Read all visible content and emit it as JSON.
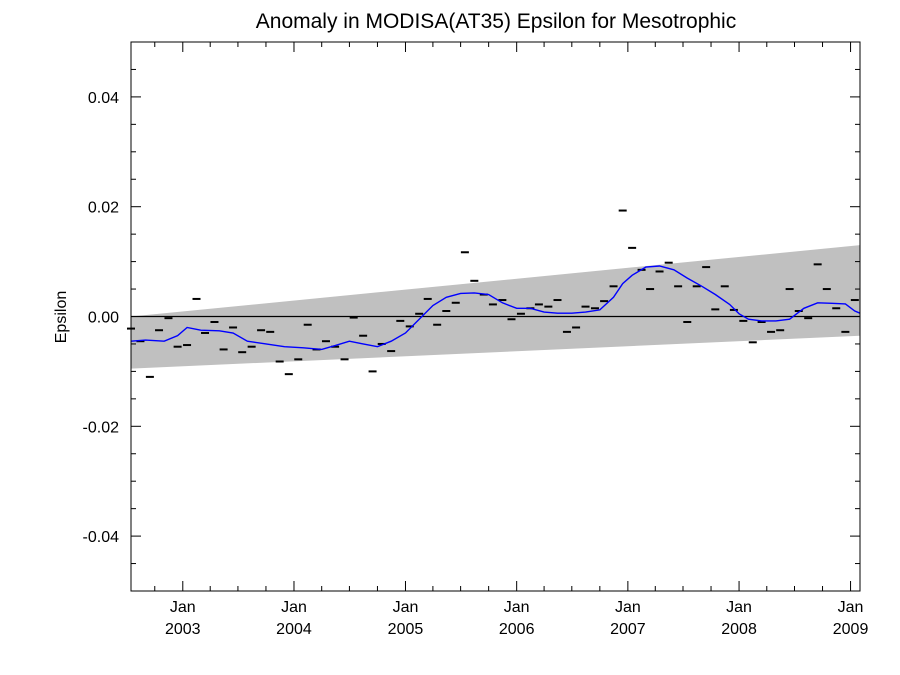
{
  "chart_data": {
    "type": "line",
    "title": "Anomaly in MODISA(AT35) Epsilon for Mesotrophic",
    "xlabel": "",
    "ylabel": "Epsilon",
    "xlim": [
      "2002-07-15",
      "2009-02-01"
    ],
    "ylim": [
      -0.05,
      0.05
    ],
    "grid": false,
    "legend": "none",
    "y_ticks": [
      -0.04,
      -0.02,
      0.0,
      0.02,
      0.04
    ],
    "y_tick_labels": [
      "-0.04",
      "-0.02",
      "0.00",
      "0.02",
      "0.04"
    ],
    "x_ticks": [
      {
        "date": "2003-01-01",
        "month": "Jan",
        "year": "2003"
      },
      {
        "date": "2004-01-01",
        "month": "Jan",
        "year": "2004"
      },
      {
        "date": "2005-01-01",
        "month": "Jan",
        "year": "2005"
      },
      {
        "date": "2006-01-01",
        "month": "Jan",
        "year": "2006"
      },
      {
        "date": "2007-01-01",
        "month": "Jan",
        "year": "2007"
      },
      {
        "date": "2008-01-01",
        "month": "Jan",
        "year": "2008"
      },
      {
        "date": "2009-01-01",
        "month": "Jan",
        "year": "2009"
      }
    ],
    "confidence_band": {
      "x": [
        "2002-07-15",
        "2009-02-01"
      ],
      "upper": [
        0.0,
        0.013
      ],
      "lower": [
        -0.0095,
        -0.0035
      ],
      "color": "#c0c0c0"
    },
    "zero_line": {
      "y": 0.0,
      "color": "#000000"
    },
    "series": [
      {
        "kind": "monthly-anomaly-markers",
        "color": "#000000",
        "x": [
          "2002-07-15",
          "2002-08-15",
          "2002-09-15",
          "2002-10-15",
          "2002-11-15",
          "2002-12-15",
          "2003-01-15",
          "2003-02-15",
          "2003-03-15",
          "2003-04-15",
          "2003-05-15",
          "2003-06-15",
          "2003-07-15",
          "2003-08-15",
          "2003-09-15",
          "2003-10-15",
          "2003-11-15",
          "2003-12-15",
          "2004-01-15",
          "2004-02-15",
          "2004-03-15",
          "2004-04-15",
          "2004-05-15",
          "2004-06-15",
          "2004-07-15",
          "2004-08-15",
          "2004-09-15",
          "2004-10-15",
          "2004-11-15",
          "2004-12-15",
          "2005-01-15",
          "2005-02-15",
          "2005-03-15",
          "2005-04-15",
          "2005-05-15",
          "2005-06-15",
          "2005-07-15",
          "2005-08-15",
          "2005-09-15",
          "2005-10-15",
          "2005-11-15",
          "2005-12-15",
          "2006-01-15",
          "2006-02-15",
          "2006-03-15",
          "2006-04-15",
          "2006-05-15",
          "2006-06-15",
          "2006-07-15",
          "2006-08-15",
          "2006-09-15",
          "2006-10-15",
          "2006-11-15",
          "2006-12-15",
          "2007-01-15",
          "2007-02-15",
          "2007-03-15",
          "2007-04-15",
          "2007-05-15",
          "2007-06-15",
          "2007-07-15",
          "2007-08-15",
          "2007-09-15",
          "2007-10-15",
          "2007-11-15",
          "2007-12-15",
          "2008-01-15",
          "2008-02-15",
          "2008-03-15",
          "2008-04-15",
          "2008-05-15",
          "2008-06-15",
          "2008-07-15",
          "2008-08-15",
          "2008-09-15",
          "2008-10-15",
          "2008-11-15",
          "2008-12-15",
          "2009-01-15"
        ],
        "values": [
          -0.0022,
          -0.0045,
          -0.011,
          -0.0025,
          -0.0003,
          -0.0055,
          -0.0052,
          0.0032,
          -0.003,
          -0.001,
          -0.006,
          -0.002,
          -0.0065,
          -0.0055,
          -0.0025,
          -0.0028,
          -0.0082,
          -0.0105,
          -0.0078,
          -0.0015,
          -0.006,
          -0.0045,
          -0.0055,
          -0.0078,
          -0.0002,
          -0.0035,
          -0.01,
          -0.005,
          -0.0063,
          -0.0008,
          -0.0018,
          0.0005,
          0.0032,
          -0.0015,
          0.001,
          0.0025,
          0.0117,
          0.0065,
          0.004,
          0.0022,
          0.003,
          -0.0005,
          0.0005,
          0.0015,
          0.0022,
          0.0018,
          0.003,
          -0.0028,
          -0.002,
          0.0018,
          0.0015,
          0.0028,
          0.0055,
          0.0193,
          0.0125,
          0.0085,
          0.005,
          0.0082,
          0.0098,
          0.0055,
          -0.001,
          0.0055,
          0.009,
          0.0013,
          0.0055,
          0.0012,
          -0.0008,
          -0.0047,
          -0.001,
          -0.0028,
          -0.0025,
          0.005,
          0.001,
          -0.0003,
          0.0095,
          0.005,
          0.0015,
          -0.0028,
          0.003
        ]
      },
      {
        "kind": "running-mean",
        "color": "#0000ff",
        "x": [
          "2002-07-15",
          "2002-09-01",
          "2002-11-01",
          "2002-12-15",
          "2003-01-15",
          "2003-03-01",
          "2003-05-01",
          "2003-06-15",
          "2003-08-01",
          "2003-10-01",
          "2003-12-01",
          "2004-02-01",
          "2004-04-01",
          "2004-05-15",
          "2004-07-01",
          "2004-08-15",
          "2004-10-01",
          "2004-11-15",
          "2005-01-01",
          "2005-02-15",
          "2005-04-01",
          "2005-05-15",
          "2005-07-01",
          "2005-08-15",
          "2005-10-01",
          "2005-11-15",
          "2006-01-01",
          "2006-02-15",
          "2006-04-01",
          "2006-05-15",
          "2006-07-01",
          "2006-08-15",
          "2006-10-01",
          "2006-11-15",
          "2006-12-15",
          "2007-01-15",
          "2007-03-01",
          "2007-04-15",
          "2007-06-01",
          "2007-07-15",
          "2007-09-01",
          "2007-10-15",
          "2007-12-01",
          "2008-01-01",
          "2008-02-01",
          "2008-03-15",
          "2008-05-01",
          "2008-06-15",
          "2008-08-01",
          "2008-09-15",
          "2008-11-01",
          "2008-12-15",
          "2009-01-15",
          "2009-02-01"
        ],
        "values": [
          -0.0045,
          -0.0043,
          -0.0045,
          -0.0035,
          -0.002,
          -0.0025,
          -0.0026,
          -0.003,
          -0.0045,
          -0.005,
          -0.0055,
          -0.0057,
          -0.006,
          -0.0053,
          -0.0045,
          -0.005,
          -0.0055,
          -0.0045,
          -0.003,
          -0.0005,
          0.002,
          0.0035,
          0.0042,
          0.0043,
          0.004,
          0.0025,
          0.0015,
          0.0015,
          0.0008,
          0.0006,
          0.0006,
          0.0008,
          0.0012,
          0.0035,
          0.006,
          0.0075,
          0.009,
          0.0092,
          0.0085,
          0.007,
          0.0055,
          0.004,
          0.0022,
          0.0005,
          -0.0005,
          -0.0008,
          -0.0008,
          -0.0005,
          0.0015,
          0.0025,
          0.0024,
          0.0023,
          0.001,
          0.0006
        ]
      }
    ]
  }
}
